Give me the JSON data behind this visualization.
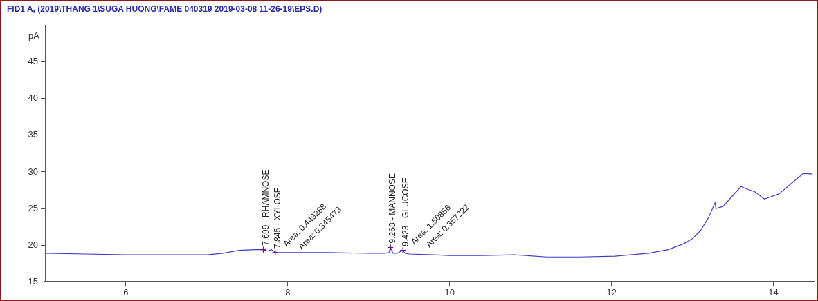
{
  "chart_data": {
    "type": "line",
    "title": "FID1 A, (2019\\THANG 1\\SUGA HUONG\\FAME 040319 2019-03-08 11-26-19\\EPS.D)",
    "ylabel": "pA",
    "xlim": [
      5,
      14.5
    ],
    "xticks": [
      6,
      8,
      10,
      12,
      14
    ],
    "ylim": [
      15,
      50
    ],
    "yticks": [
      15,
      20,
      25,
      30,
      35,
      40,
      45
    ],
    "grid": false,
    "legend": false,
    "marker": "none",
    "line_style": "solid",
    "series": [
      {
        "color": "#3b3bc8",
        "x": [
          5,
          5.5,
          6,
          6.5,
          7,
          7.2,
          7.4,
          7.6,
          7.7,
          7.75,
          7.8,
          7.85,
          7.9,
          8.2,
          8.5,
          9.0,
          9.2,
          9.25,
          9.27,
          9.3,
          9.35,
          9.42,
          9.45,
          9.5,
          9.8,
          10,
          10.4,
          10.8,
          11.2,
          11.6,
          12.04,
          12.46,
          12.7,
          12.89,
          13.0,
          13.1,
          13.2,
          13.28,
          13.29,
          13.38,
          13.5,
          13.6,
          13.69,
          13.77,
          13.89,
          14.07,
          14.22,
          14.37,
          14.48
        ],
        "values": [
          18.9,
          18.8,
          18.7,
          18.7,
          18.7,
          18.9,
          19.3,
          19.4,
          19.4,
          19.2,
          19.4,
          19.0,
          19.0,
          19.0,
          19.0,
          18.9,
          18.9,
          19.0,
          19.7,
          18.9,
          18.9,
          19.3,
          18.9,
          18.8,
          18.7,
          18.6,
          18.6,
          18.7,
          18.4,
          18.4,
          18.5,
          18.9,
          19.4,
          20.2,
          20.9,
          22.0,
          23.8,
          25.8,
          25.0,
          25.3,
          26.8,
          28.0,
          27.6,
          27.3,
          26.3,
          27.0,
          28.4,
          29.8,
          29.7
        ]
      }
    ],
    "annotations": [
      {
        "text": "7.699 - RHAMNOSE",
        "x": 7.699,
        "y": 19.4
      },
      {
        "text": "Area: 0.449288",
        "x": 7.699,
        "y": 19.4
      },
      {
        "text": "7.845 - XYLOSE",
        "x": 7.845,
        "y": 19.0
      },
      {
        "text": "Area: 0.345473",
        "x": 7.845,
        "y": 19.0
      },
      {
        "text": "9.268 - MANNOSE",
        "x": 9.268,
        "y": 19.7
      },
      {
        "text": "Area: 1.50856",
        "x": 9.268,
        "y": 19.7
      },
      {
        "text": "9.423 - GLUCOSE",
        "x": 9.423,
        "y": 19.3
      },
      {
        "text": "Area: 0.357222",
        "x": 9.423,
        "y": 19.3
      }
    ]
  }
}
